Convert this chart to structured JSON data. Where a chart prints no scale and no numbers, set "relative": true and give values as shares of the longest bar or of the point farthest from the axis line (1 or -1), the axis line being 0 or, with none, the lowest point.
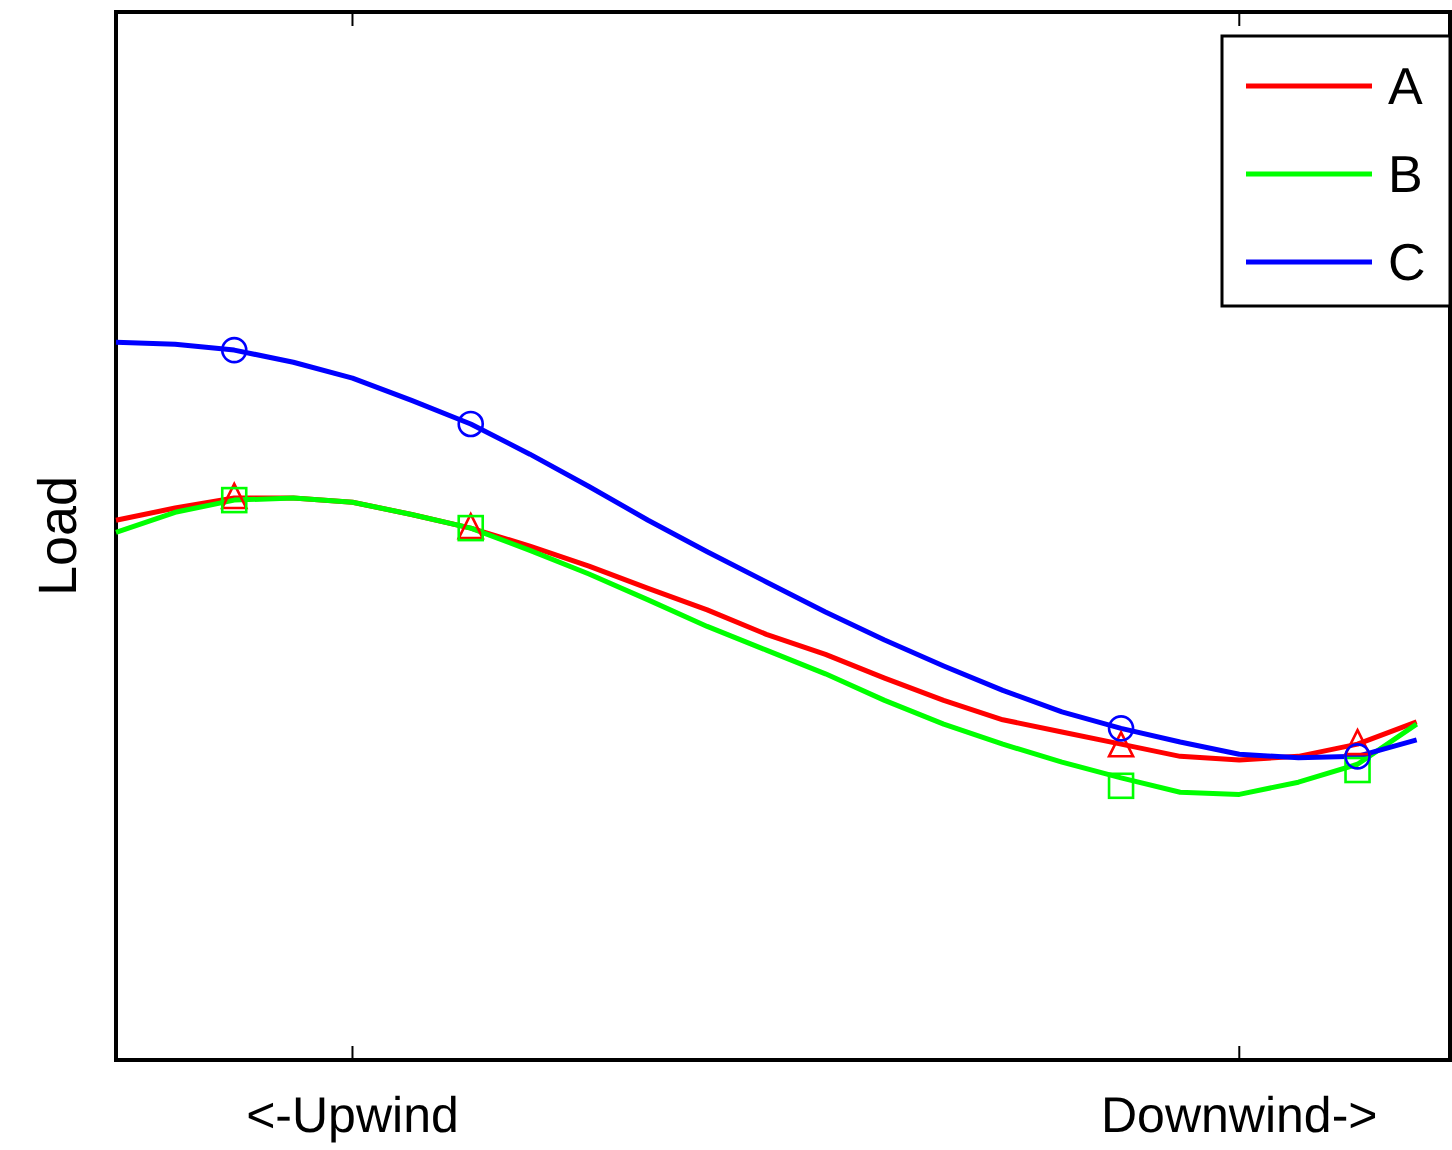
{
  "chart_data": {
    "type": "line",
    "ylabel": "Load",
    "relative": true,
    "legend": "top right",
    "grid": false,
    "categories": [
      null,
      null,
      null,
      null,
      "<-Upwind",
      null,
      null,
      null,
      null,
      null,
      null,
      null,
      null,
      null,
      null,
      null,
      null,
      null,
      null,
      "Downwind->",
      null,
      null,
      null
    ],
    "series": [
      {
        "name": "A",
        "marker": "none",
        "color": "#ff0000",
        "values": [
          0.752,
          0.769,
          0.783,
          0.783,
          0.777,
          0.76,
          0.741,
          0.716,
          0.688,
          0.657,
          0.627,
          0.593,
          0.565,
          0.532,
          0.501,
          0.474,
          0.457,
          0.44,
          0.423,
          0.418,
          0.423,
          0.44,
          0.471
        ]
      },
      {
        "name": "B",
        "marker": "none",
        "color": "#00ff00",
        "values": [
          0.735,
          0.763,
          0.78,
          0.783,
          0.777,
          0.76,
          0.741,
          0.71,
          0.677,
          0.641,
          0.604,
          0.571,
          0.538,
          0.501,
          0.468,
          0.44,
          0.415,
          0.393,
          0.373,
          0.37,
          0.387,
          0.412,
          0.468
        ]
      },
      {
        "name": "C",
        "marker": "none",
        "color": "#0000ff",
        "values": [
          1,
          0.997,
          0.989,
          0.972,
          0.95,
          0.919,
          0.886,
          0.844,
          0.799,
          0.752,
          0.708,
          0.666,
          0.624,
          0.585,
          0.549,
          0.515,
          0.485,
          0.462,
          0.443,
          0.426,
          0.421,
          0.423,
          0.446
        ]
      },
      {
        "type": "scatter",
        "marker": "triangle",
        "color": "#ff0000",
        "values": [
          null,
          null,
          0.783,
          null,
          null,
          null,
          0.741,
          null,
          null,
          null,
          null,
          null,
          null,
          null,
          null,
          null,
          null,
          0.437,
          null,
          null,
          null,
          0.44,
          null
        ]
      },
      {
        "type": "scatter",
        "marker": "square",
        "color": "#00ff00",
        "values": [
          null,
          null,
          0.78,
          null,
          null,
          null,
          0.741,
          null,
          null,
          null,
          null,
          null,
          null,
          null,
          null,
          null,
          null,
          0.382,
          null,
          null,
          null,
          0.404,
          null
        ]
      },
      {
        "type": "scatter",
        "marker": "circle",
        "color": "#0000ff",
        "values": [
          null,
          null,
          0.989,
          null,
          null,
          null,
          0.886,
          null,
          null,
          null,
          null,
          null,
          null,
          null,
          null,
          null,
          null,
          0.462,
          null,
          null,
          null,
          0.423,
          null
        ]
      }
    ]
  }
}
